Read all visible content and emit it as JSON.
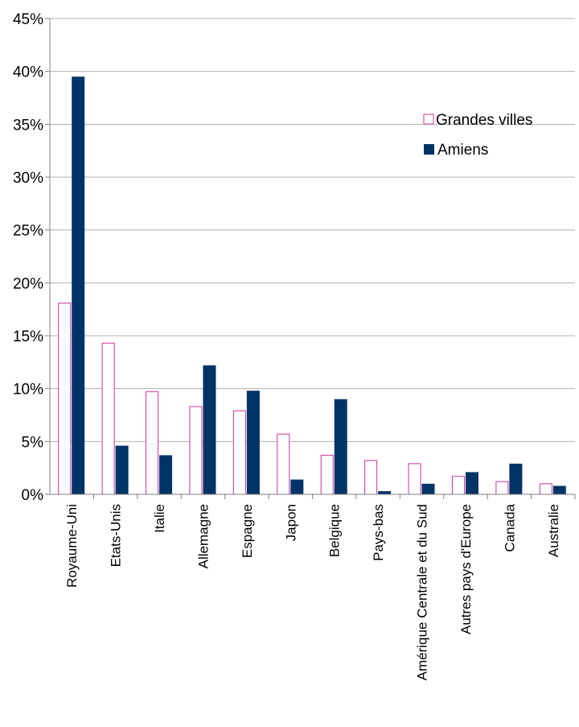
{
  "chart_data": {
    "type": "bar",
    "title": "",
    "xlabel": "",
    "ylabel": "",
    "categories": [
      "Royaume-Uni",
      "Etats-Unis",
      "Italie",
      "Allemagne",
      "Espagne",
      "Japon",
      "Belgique",
      "Pays-bas",
      "Amérique Centrale et du Sud",
      "Autres pays d'Europe",
      "Canada",
      "Australie"
    ],
    "series": [
      {
        "name": "Grandes villes",
        "values": [
          18.1,
          14.3,
          9.7,
          8.3,
          7.9,
          5.7,
          3.7,
          3.2,
          2.9,
          1.7,
          1.2,
          1.0
        ],
        "color": "#cc3399",
        "style": "outline"
      },
      {
        "name": "Amiens",
        "values": [
          39.5,
          4.6,
          3.7,
          12.2,
          9.8,
          1.4,
          9.0,
          0.3,
          1.0,
          2.1,
          2.9,
          0.8
        ],
        "color": "#003366",
        "style": "filled"
      }
    ],
    "ylim": [
      0,
      45
    ],
    "yticks": [
      "0%",
      "5%",
      "10%",
      "15%",
      "20%",
      "25%",
      "30%",
      "35%",
      "40%",
      "45%"
    ],
    "grid": true,
    "legend_position": "top-right"
  }
}
